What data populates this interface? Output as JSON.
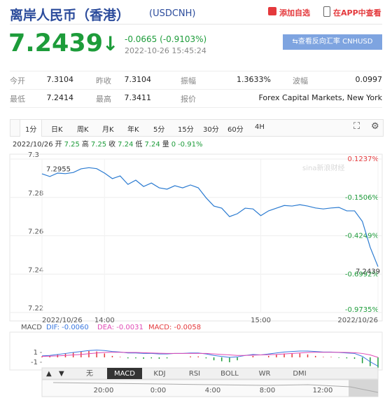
{
  "header": {
    "title": "离岸人民币（香港）",
    "code": "(USDCNH)",
    "add_watch": "添加自选",
    "open_app": "在APP中查看"
  },
  "quote": {
    "price": "7.2439",
    "change": "-0.0665 (-0.9103%)",
    "time": "2022-10-26 15:45:24",
    "reverse_button": "查看反向汇率 CNHUSD"
  },
  "stats": {
    "rows": [
      [
        {
          "label": "今开",
          "value": "7.3104"
        },
        {
          "label": "昨收",
          "value": "7.3104"
        },
        {
          "label": "振幅",
          "value": "1.3633%"
        },
        {
          "label": "波幅",
          "value": "0.0997"
        }
      ],
      [
        {
          "label": "最低",
          "value": "7.2414"
        },
        {
          "label": "最高",
          "value": "7.3411"
        },
        {
          "label": "报价",
          "value": "Forex Capital Markets, New York"
        }
      ]
    ]
  },
  "tabs": [
    "1分",
    "日K",
    "周K",
    "月K",
    "年K",
    "5分",
    "15分",
    "30分",
    "60分",
    "4H"
  ],
  "info": {
    "date": "2022/10/26",
    "items": [
      {
        "label": "开",
        "value": "7.25"
      },
      {
        "label": "高",
        "value": "7.25"
      },
      {
        "label": "收",
        "value": "7.24"
      },
      {
        "label": "低",
        "value": "7.24"
      },
      {
        "label": "量",
        "value": "0"
      }
    ],
    "change": "-0.91%"
  },
  "watermark": "sina新浪财经",
  "macd_legend": {
    "title": "MACD",
    "dif": "DIF: -0.0060",
    "dea": "DEA: -0.0031",
    "macd": "MACD: -0.0058"
  },
  "indicator_tabs": [
    "无",
    "MACD",
    "KDJ",
    "RSI",
    "BOLL",
    "WR",
    "DMI"
  ],
  "navigator": {
    "labels": [
      "20:00",
      "0:00",
      "4:00",
      "8:00",
      "12:00"
    ]
  },
  "chart_data": [
    {
      "type": "line",
      "x": [
        816,
        819,
        822,
        825,
        828,
        831,
        834,
        837,
        840,
        843,
        846,
        849,
        852,
        855,
        858,
        861,
        864,
        867,
        870,
        873,
        876,
        879,
        882,
        885,
        888,
        891,
        894,
        897,
        900,
        903,
        906,
        909,
        912,
        915,
        918,
        921,
        924,
        927,
        930,
        933,
        936,
        939,
        942,
        945
      ],
      "series": [
        {
          "color": "#2b7bd1",
          "values": [
            7.2923,
            7.2909,
            7.2927,
            7.2924,
            7.293,
            7.2949,
            7.2955,
            7.295,
            7.2927,
            7.2898,
            7.2912,
            7.2868,
            7.289,
            7.2857,
            7.2875,
            7.285,
            7.2843,
            7.2861,
            7.285,
            7.2865,
            7.285,
            7.2798,
            7.2755,
            7.2744,
            7.27,
            7.2715,
            7.2744,
            7.274,
            7.2705,
            7.273,
            7.2744,
            7.2758,
            7.2755,
            7.2762,
            7.2755,
            7.2745,
            7.274,
            7.2745,
            7.2748,
            7.273,
            7.273,
            7.2675,
            7.254,
            7.2439
          ],
          "value_labels": [
            null,
            null,
            null,
            null,
            null,
            null,
            "7.2955",
            null,
            null,
            null,
            null,
            null,
            null,
            null,
            null,
            null,
            null,
            null,
            null,
            null,
            null,
            null,
            null,
            null,
            null,
            null,
            null,
            null,
            null,
            null,
            null,
            null,
            null,
            null,
            null,
            null,
            null,
            null,
            null,
            null,
            null,
            null,
            null,
            "7.2439"
          ]
        }
      ],
      "xlim": [
        816,
        945
      ],
      "xticks": [
        {
          "value": 816,
          "label": "2022/10/26"
        },
        {
          "value": 840,
          "label": "14:00"
        },
        {
          "value": 900,
          "label": "15:00"
        },
        {
          "value": 945,
          "label": "2022/10/26"
        }
      ],
      "ylim": [
        7.22,
        7.3
      ],
      "yticks": [
        7.22,
        7.24,
        7.26,
        7.28,
        7.3
      ],
      "y2lim": [
        -0.9735,
        0.1237
      ],
      "y2ticks": [
        {
          "value": 0.1237,
          "label": "0.1237%"
        },
        {
          "value": -0.1506,
          "label": "-0.1506%"
        },
        {
          "value": -0.4249,
          "label": "-0.4249%"
        },
        {
          "value": -0.6992,
          "label": "-0.6992%"
        },
        {
          "value": -0.9735,
          "label": "-0.9735%"
        }
      ],
      "up_color": "#e4393c",
      "down_color": "#1d9c3a",
      "grid": true
    },
    {
      "type": "macd",
      "x": [
        816,
        819,
        822,
        825,
        828,
        831,
        834,
        837,
        840,
        843,
        846,
        849,
        852,
        855,
        858,
        861,
        864,
        867,
        870,
        873,
        876,
        879,
        882,
        885,
        888,
        891,
        894,
        897,
        900,
        903,
        906,
        909,
        912,
        915,
        918,
        921,
        924,
        927,
        930,
        933,
        936,
        939,
        942,
        945
      ],
      "xlim": [
        816,
        945
      ],
      "ylim": [
        -2.3,
        4.6
      ],
      "yticks": [
        -1,
        1
      ],
      "series": [
        {
          "color": "#3a78e0",
          "values": [
            0.3,
            0.4,
            0.6,
            0.8,
            1.0,
            1.2,
            1.4,
            1.5,
            1.4,
            1.2,
            1.1,
            0.9,
            0.9,
            0.8,
            0.8,
            0.7,
            0.7,
            0.8,
            0.8,
            0.9,
            0.9,
            0.7,
            0.4,
            0.2,
            0.0,
            0.1,
            0.4,
            0.6,
            0.5,
            0.7,
            0.9,
            1.1,
            1.2,
            1.3,
            1.3,
            1.2,
            1.1,
            1.1,
            1.0,
            0.9,
            0.8,
            0.2,
            -0.9,
            -1.8
          ]
        },
        {
          "color": "#e04ab5",
          "values": [
            0.2,
            0.25,
            0.3,
            0.4,
            0.5,
            0.6,
            0.75,
            0.9,
            1.0,
            1.05,
            1.05,
            1.0,
            1.0,
            0.95,
            0.9,
            0.85,
            0.8,
            0.8,
            0.8,
            0.8,
            0.8,
            0.8,
            0.7,
            0.6,
            0.5,
            0.4,
            0.4,
            0.45,
            0.5,
            0.55,
            0.6,
            0.7,
            0.8,
            0.9,
            1.0,
            1.05,
            1.05,
            1.05,
            1.05,
            1.0,
            0.95,
            0.8,
            0.5,
            0.0
          ]
        }
      ],
      "histogram": [
        0.2,
        0.3,
        0.6,
        0.8,
        1.0,
        1.2,
        1.3,
        1.2,
        0.8,
        0.3,
        0.1,
        -0.2,
        -0.2,
        -0.3,
        -0.2,
        -0.3,
        -0.2,
        0,
        0,
        0.2,
        0.2,
        -0.2,
        -0.6,
        -0.8,
        -1.0,
        -0.6,
        0,
        0.3,
        0,
        0.3,
        0.6,
        0.8,
        0.8,
        0.8,
        0.6,
        0.3,
        0.1,
        0.1,
        -0.1,
        -0.2,
        -0.3,
        -1.2,
        -1.8,
        -2.2
      ],
      "up_color": "#e4393c",
      "down_color": "#1d9c3a"
    }
  ]
}
